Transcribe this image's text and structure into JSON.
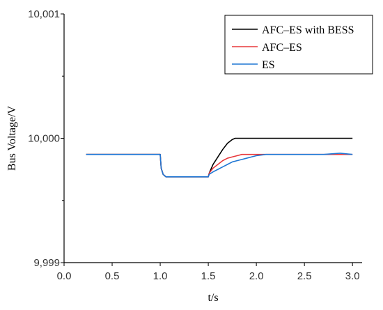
{
  "chart_data": {
    "type": "line",
    "xlabel": "t/s",
    "ylabel": "Bus Voltage/V",
    "xlim": [
      0.0,
      3.1
    ],
    "ylim": [
      9.999,
      10.001
    ],
    "x_ticks": [
      0.0,
      0.5,
      1.0,
      1.5,
      2.0,
      2.5,
      3.0
    ],
    "x_tick_labels": [
      "0.0",
      "0.5",
      "1.0",
      "1.5",
      "2.0",
      "2.5",
      "3.0"
    ],
    "y_ticks": [
      9.999,
      10.0,
      10.001
    ],
    "y_tick_labels": [
      "9,999",
      "10,000",
      "10,001"
    ],
    "y_minor_ticks": [
      9.9995,
      10.0005
    ],
    "grid": false,
    "legend": "top-right",
    "series": [
      {
        "name": "AFC–ES with BESS",
        "color": "#000000",
        "x": [
          0.23,
          1.0,
          1.01,
          1.03,
          1.06,
          1.1,
          1.5,
          1.51,
          1.55,
          1.6,
          1.65,
          1.7,
          1.75,
          1.78,
          2.0,
          2.5,
          3.0
        ],
        "y": [
          9.99987,
          9.99987,
          9.99976,
          9.99971,
          9.99969,
          9.99969,
          9.99969,
          9.99972,
          9.99979,
          9.99985,
          9.99991,
          9.99996,
          9.99999,
          10.0,
          10.0,
          10.0,
          10.0
        ]
      },
      {
        "name": "AFC–ES",
        "color": "#e8383c",
        "x": [
          0.23,
          1.0,
          1.01,
          1.03,
          1.06,
          1.1,
          1.5,
          1.51,
          1.55,
          1.6,
          1.65,
          1.7,
          1.75,
          1.8,
          1.85,
          2.0,
          2.5,
          3.0
        ],
        "y": [
          9.99987,
          9.99987,
          9.99976,
          9.99971,
          9.99969,
          9.99969,
          9.99969,
          9.99972,
          9.99976,
          9.99979,
          9.99982,
          9.99984,
          9.99985,
          9.99986,
          9.99987,
          9.99987,
          9.99987,
          9.99987
        ]
      },
      {
        "name": "ES",
        "color": "#1f77d4",
        "x": [
          0.23,
          1.0,
          1.01,
          1.03,
          1.06,
          1.1,
          1.5,
          1.51,
          1.55,
          1.6,
          1.65,
          1.7,
          1.75,
          1.8,
          1.85,
          1.9,
          1.95,
          2.0,
          2.1,
          2.3,
          2.5,
          2.7,
          2.87,
          3.0
        ],
        "y": [
          9.99987,
          9.99987,
          9.99976,
          9.99971,
          9.99969,
          9.99969,
          9.99969,
          9.99971,
          9.99973,
          9.99975,
          9.99977,
          9.99979,
          9.99981,
          9.99982,
          9.99983,
          9.99984,
          9.99985,
          9.99986,
          9.99987,
          9.99987,
          9.99987,
          9.99987,
          9.99988,
          9.99987
        ]
      }
    ]
  }
}
